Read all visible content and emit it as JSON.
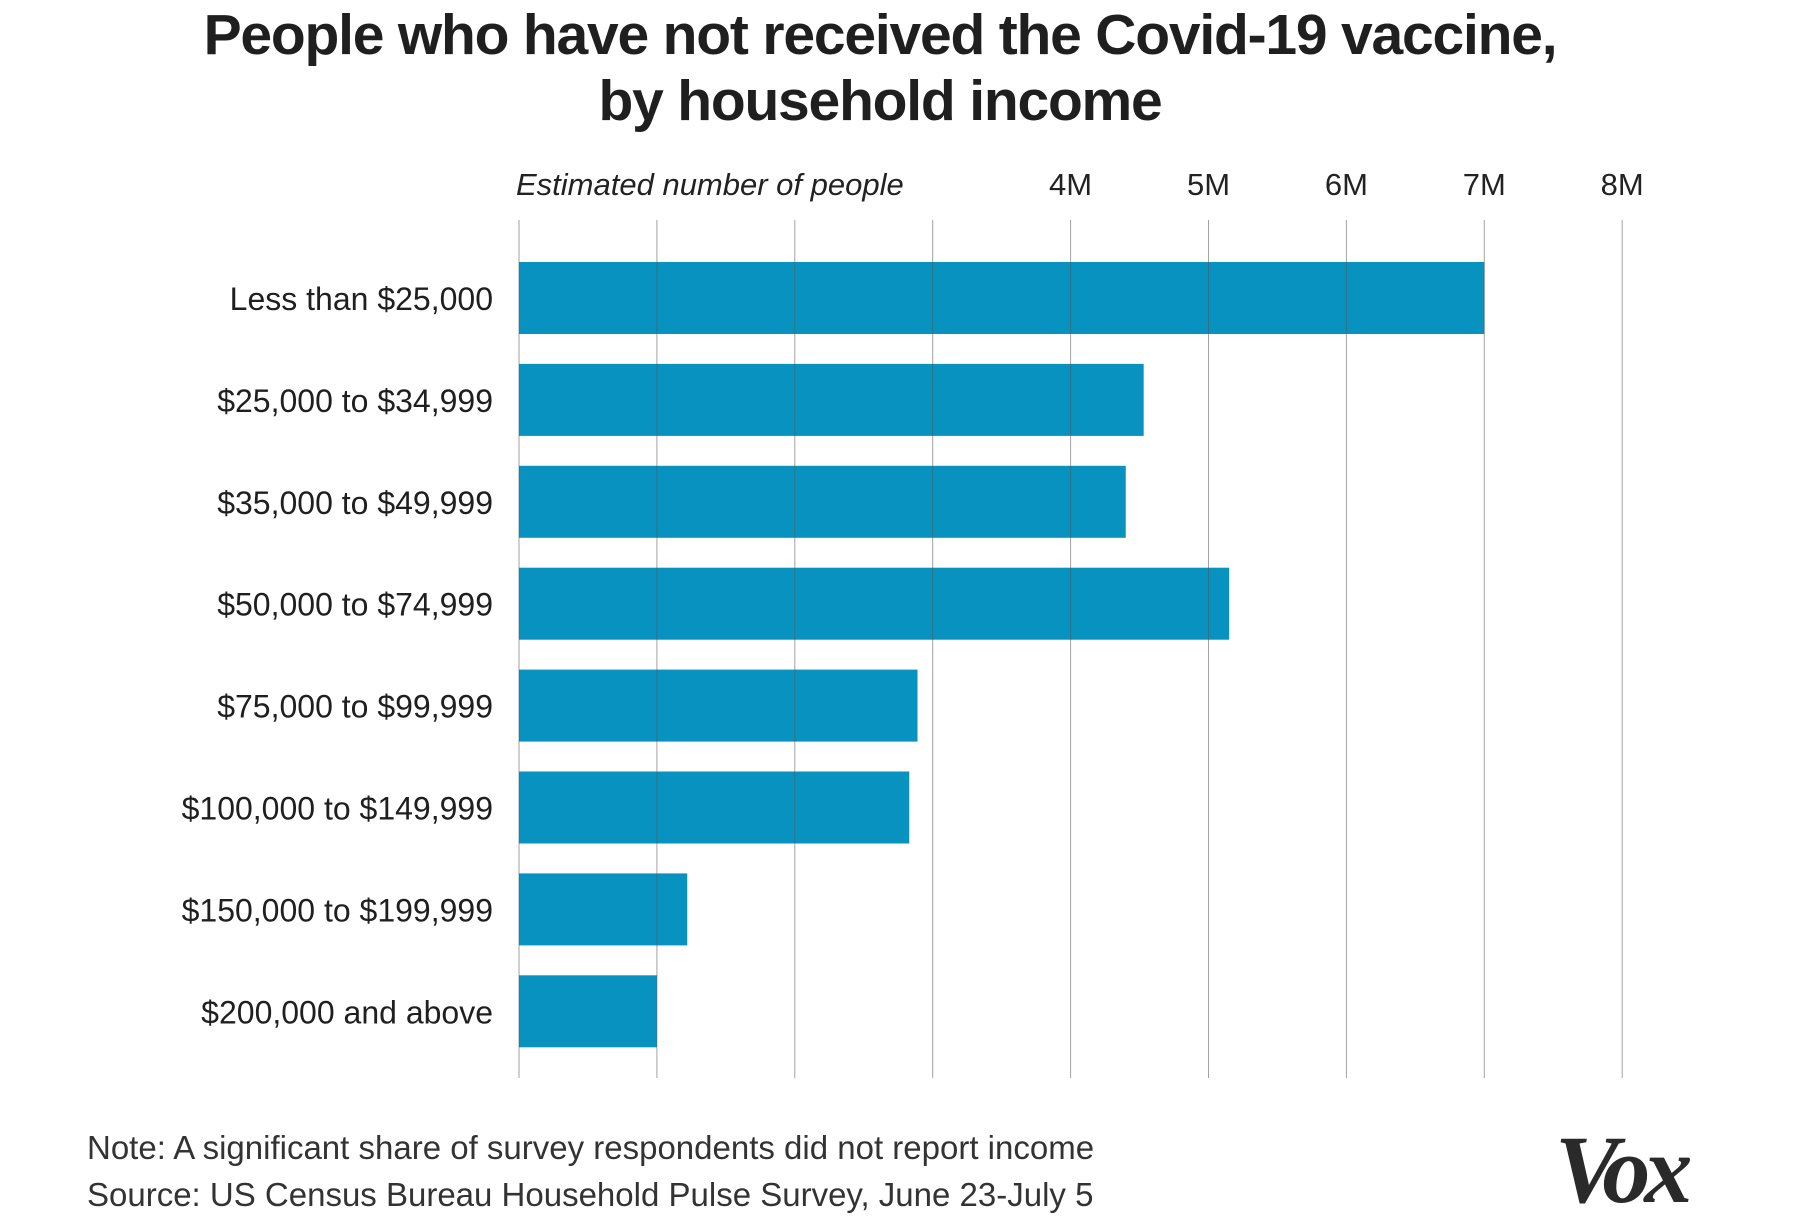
{
  "chart_data": {
    "type": "bar",
    "orientation": "horizontal",
    "title_lines": [
      "People who have not received the Covid-19 vaccine,",
      "by household income"
    ],
    "axis_label": "Estimated number of people",
    "xlim": [
      0,
      8
    ],
    "x_unit": "millions",
    "tick_values": [
      4,
      5,
      6,
      7,
      8
    ],
    "tick_labels": [
      "4M",
      "5M",
      "6M",
      "7M",
      "8M"
    ],
    "gridlines": [
      0,
      1,
      2,
      3,
      4,
      5,
      6,
      7,
      8
    ],
    "grid": true,
    "bar_color": "#0892bf",
    "categories": [
      "Less than $25,000",
      "$25,000 to $34,999",
      "$35,000 to $49,999",
      "$50,000 to $74,999",
      "$75,000 to $99,999",
      "$100,000 to $149,999",
      "$150,000 to $199,999",
      "$200,000 and above"
    ],
    "values": [
      7.0,
      4.53,
      4.4,
      5.15,
      2.89,
      2.83,
      1.22,
      1.0
    ]
  },
  "footer": {
    "note": "Note: A significant share of survey respondents did not report income",
    "source": "Source: US Census Bureau Household Pulse Survey, June 23-July 5"
  },
  "logo": {
    "text": "Vox"
  }
}
